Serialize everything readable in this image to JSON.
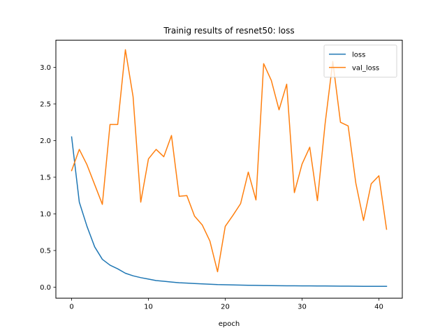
{
  "chart_data": {
    "type": "line",
    "title": "Trainig results of resnet50: loss",
    "xlabel": "epoch",
    "ylabel": "",
    "xlim": [
      -2.05,
      43.05
    ],
    "ylim": [
      -0.15,
      3.37
    ],
    "xticks": [
      0,
      10,
      20,
      30,
      40
    ],
    "yticks": [
      0.0,
      0.5,
      1.0,
      1.5,
      2.0,
      2.5,
      3.0
    ],
    "ytick_labels": [
      "0.0",
      "0.5",
      "1.0",
      "1.5",
      "2.0",
      "2.5",
      "3.0"
    ],
    "grid": false,
    "legend_position": "upper right",
    "x": [
      0,
      1,
      2,
      3,
      4,
      5,
      6,
      7,
      8,
      9,
      10,
      11,
      12,
      13,
      14,
      15,
      16,
      17,
      18,
      19,
      20,
      21,
      22,
      23,
      24,
      25,
      26,
      27,
      28,
      29,
      30,
      31,
      32,
      33,
      34,
      35,
      36,
      37,
      38,
      39,
      40,
      41
    ],
    "series": [
      {
        "name": "loss",
        "color": "#1f77b4",
        "values": [
          2.05,
          1.16,
          0.83,
          0.55,
          0.38,
          0.3,
          0.25,
          0.19,
          0.155,
          0.13,
          0.11,
          0.09,
          0.08,
          0.07,
          0.06,
          0.055,
          0.05,
          0.045,
          0.04,
          0.035,
          0.033,
          0.03,
          0.028,
          0.026,
          0.024,
          0.022,
          0.021,
          0.02,
          0.019,
          0.018,
          0.017,
          0.017,
          0.016,
          0.016,
          0.015,
          0.014,
          0.014,
          0.013,
          0.012,
          0.012,
          0.011,
          0.011
        ]
      },
      {
        "name": "val_loss",
        "color": "#ff7f0e",
        "values": [
          1.59,
          1.88,
          1.67,
          1.4,
          1.13,
          2.22,
          2.22,
          3.24,
          2.6,
          1.16,
          1.75,
          1.88,
          1.78,
          2.07,
          1.24,
          1.25,
          0.97,
          0.85,
          0.63,
          0.21,
          0.83,
          0.98,
          1.14,
          1.57,
          1.19,
          3.05,
          2.82,
          2.42,
          2.77,
          1.29,
          1.68,
          1.91,
          1.18,
          2.23,
          3.08,
          2.25,
          2.2,
          1.42,
          0.91,
          1.41,
          1.52,
          0.79
        ]
      }
    ]
  }
}
